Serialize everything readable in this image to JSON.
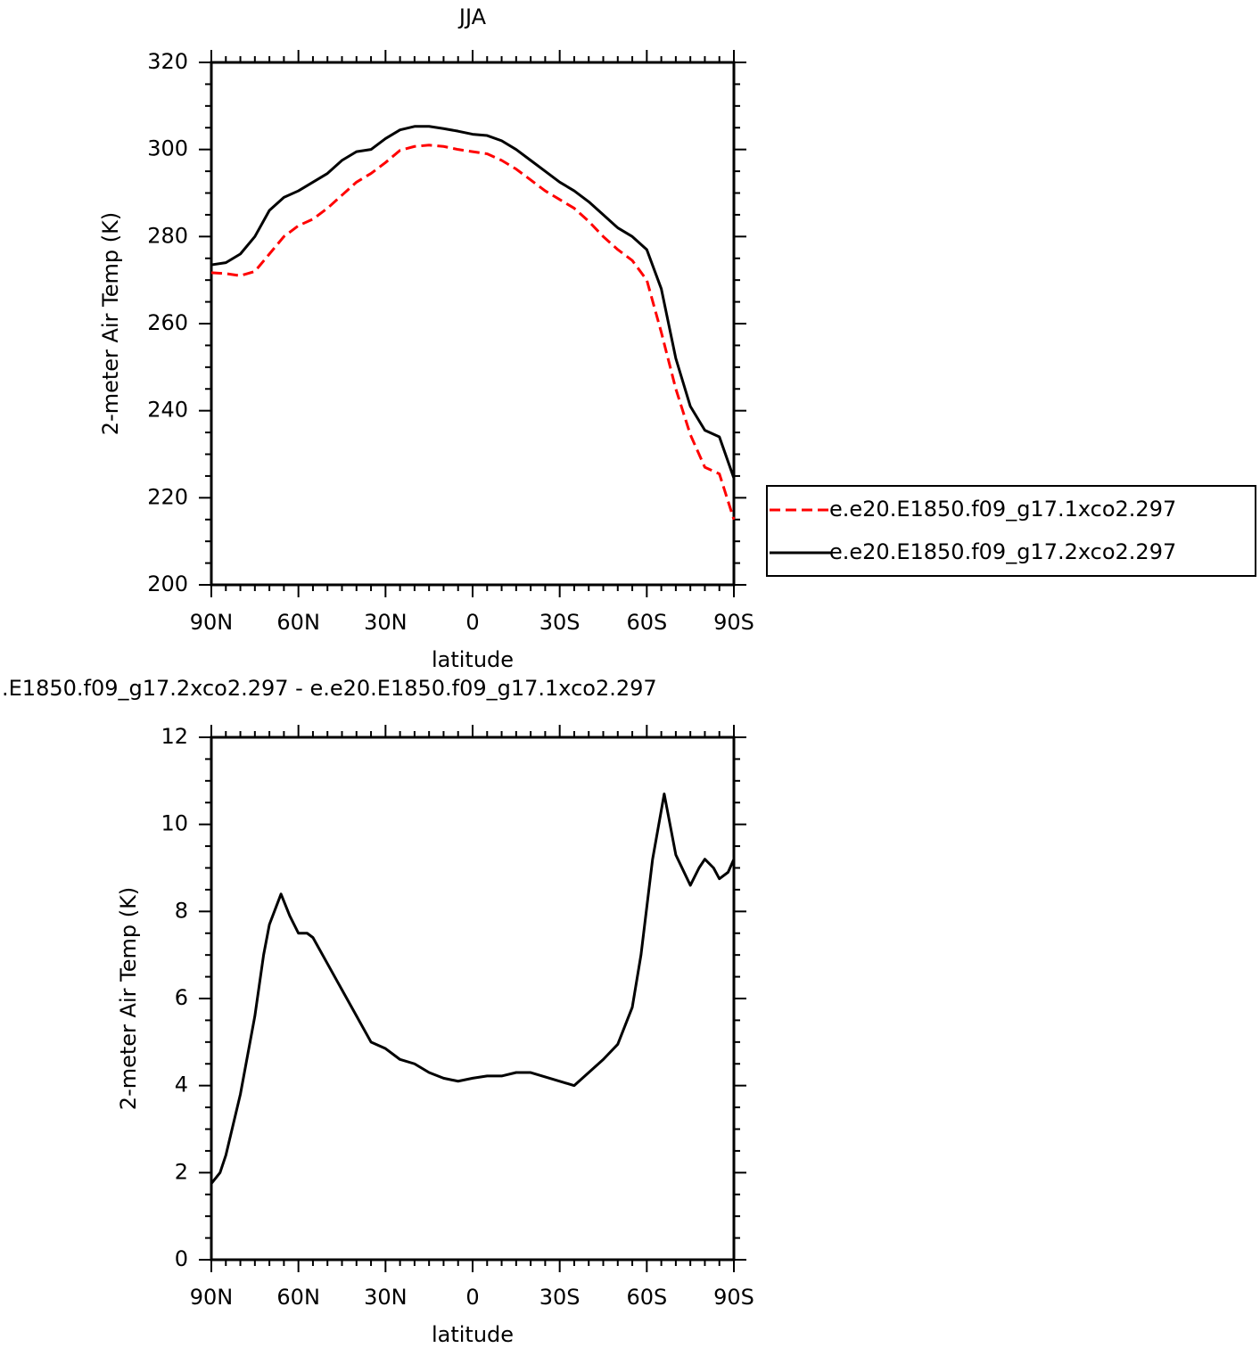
{
  "chart_data": [
    {
      "type": "line",
      "title": "JJA",
      "xlabel": "latitude",
      "ylabel": "2-meter Air Temp (K)",
      "x": [
        90,
        85,
        80,
        75,
        70,
        65,
        60,
        55,
        50,
        45,
        40,
        35,
        30,
        25,
        20,
        15,
        10,
        5,
        0,
        -5,
        -10,
        -15,
        -20,
        -25,
        -30,
        -35,
        -40,
        -45,
        -50,
        -55,
        -60,
        -65,
        -70,
        -75,
        -80,
        -85,
        -90
      ],
      "series": [
        {
          "name": "e.e20.E1850.f09_g17.1xco2.297",
          "color": "#ff0000",
          "linestyle": "dashed",
          "values": [
            271.7,
            271.5,
            271,
            272,
            276,
            280,
            282.5,
            284,
            286.5,
            289.5,
            292.5,
            294.5,
            297,
            299.8,
            300.7,
            301,
            300.7,
            300,
            299.5,
            299,
            297.5,
            295.5,
            293,
            290.5,
            288.5,
            286.5,
            283.5,
            280,
            277,
            274.5,
            270,
            258,
            245,
            234.5,
            227,
            225.5,
            215
          ]
        },
        {
          "name": "e.e20.E1850.f09_g17.2xco2.297",
          "color": "#000000",
          "linestyle": "solid",
          "values": [
            273.5,
            274,
            276,
            280,
            286,
            289,
            290.5,
            292.5,
            294.5,
            297.5,
            299.5,
            300,
            302.5,
            304.5,
            305.3,
            305.3,
            304.8,
            304.2,
            303.5,
            303.2,
            302,
            300,
            297.5,
            295,
            292.5,
            290.5,
            288,
            285,
            282,
            280,
            277,
            268,
            252,
            241,
            235.5,
            234,
            224.5
          ]
        }
      ],
      "xlim": [
        90,
        -90
      ],
      "ylim": [
        200,
        320
      ],
      "xticks": [
        {
          "value": 90,
          "label": "90N"
        },
        {
          "value": 60,
          "label": "60N"
        },
        {
          "value": 30,
          "label": "30N"
        },
        0,
        {
          "value": -30,
          "label": "30S"
        },
        {
          "value": -60,
          "label": "60S"
        },
        {
          "value": -90,
          "label": "90S"
        }
      ],
      "yticks": [
        200,
        220,
        240,
        260,
        280,
        300,
        320
      ],
      "legend": "right"
    },
    {
      "type": "line",
      "title": ".E1850.f09_g17.2xco2.297 - e.e20.E1850.f09_g17.1xco2.297",
      "xlabel": "latitude",
      "ylabel": "2-meter Air Temp (K)",
      "x": [
        90,
        87,
        85,
        80,
        75,
        72,
        70,
        66,
        63,
        60,
        57,
        55,
        50,
        45,
        40,
        35,
        30,
        25,
        20,
        15,
        10,
        5,
        0,
        -5,
        -10,
        -15,
        -20,
        -25,
        -30,
        -35,
        -40,
        -45,
        -50,
        -55,
        -58,
        -62,
        -66,
        -70,
        -75,
        -78,
        -80,
        -83,
        -85,
        -88,
        -90
      ],
      "series": [
        {
          "color": "#000000",
          "linestyle": "solid",
          "values": [
            1.75,
            2.0,
            2.4,
            3.8,
            5.6,
            7.0,
            7.7,
            8.4,
            7.9,
            7.5,
            7.5,
            7.4,
            6.8,
            6.2,
            5.6,
            5.0,
            4.85,
            4.6,
            4.5,
            4.3,
            4.17,
            4.1,
            4.17,
            4.22,
            4.22,
            4.3,
            4.3,
            4.2,
            4.1,
            4.0,
            4.3,
            4.6,
            4.95,
            5.8,
            7.0,
            9.2,
            10.7,
            9.3,
            8.6,
            9.0,
            9.2,
            9.0,
            8.75,
            8.9,
            9.2
          ]
        }
      ],
      "xlim": [
        90,
        -90
      ],
      "ylim": [
        0,
        12
      ],
      "xticks": [
        {
          "value": 90,
          "label": "90N"
        },
        {
          "value": 60,
          "label": "60N"
        },
        {
          "value": 30,
          "label": "30N"
        },
        0,
        {
          "value": -30,
          "label": "30S"
        },
        {
          "value": -60,
          "label": "60S"
        },
        {
          "value": -90,
          "label": "90S"
        }
      ],
      "yticks": [
        0,
        2,
        4,
        6,
        8,
        10,
        12
      ]
    }
  ]
}
